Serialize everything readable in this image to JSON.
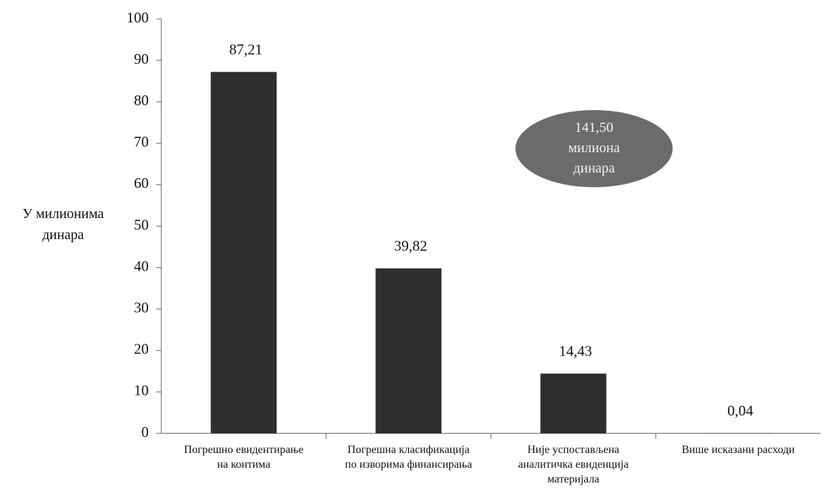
{
  "chart_data": {
    "type": "bar",
    "y_label": "У милионима\nдинара",
    "categories": [
      "Погрешно евидентирање\nна контима",
      "Погрешна класификација\nпо изворима финансирања",
      "Није успостављена\nаналитичка евиденција\nматеријала",
      "Више исказани расходи"
    ],
    "values": [
      87.21,
      39.82,
      14.43,
      0.04
    ],
    "value_labels": [
      "87,21",
      "39,82",
      "14,43",
      "0,04"
    ],
    "color": "#2e2e2e",
    "ylim": [
      0,
      100
    ],
    "yticks": [
      0,
      10,
      20,
      30,
      40,
      50,
      60,
      70,
      80,
      90,
      100
    ],
    "annotation": "141,50\nмилиона\nдинара"
  }
}
